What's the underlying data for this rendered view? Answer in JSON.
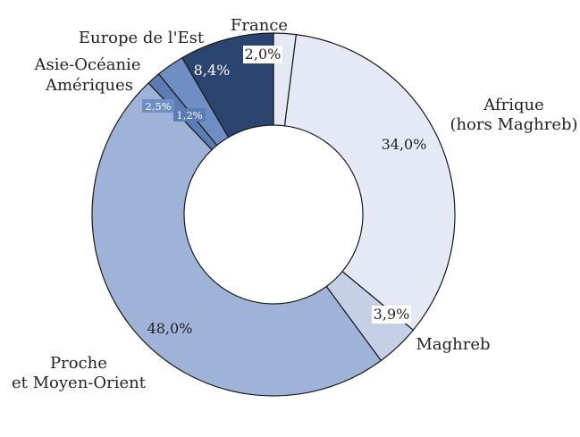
{
  "chart_data": {
    "type": "pie",
    "variant": "donut",
    "slices": [
      {
        "label": "France",
        "value": 2.0,
        "value_label": "2,0%",
        "color": "#e4e9f5"
      },
      {
        "label": "Afrique\n(hors Maghreb)",
        "value": 34.0,
        "value_label": "34,0%",
        "color": "#e4e9f5"
      },
      {
        "label": "Maghreb",
        "value": 3.9,
        "value_label": "3,9%",
        "color": "#c4d0e6"
      },
      {
        "label": "Proche\net Moyen-Orient",
        "value": 48.0,
        "value_label": "48,0%",
        "color": "#9fb3d8"
      },
      {
        "label": "Amériques",
        "value": 1.2,
        "value_label": "1,2%",
        "color": "#5b7cb4"
      },
      {
        "label": "Asie-Océanie",
        "value": 2.5,
        "value_label": "2,5%",
        "color": "#6f8fc4"
      },
      {
        "label": "Europe de l'Est",
        "value": 8.4,
        "value_label": "8,4%",
        "color": "#2c4470"
      }
    ],
    "direction": "clockwise",
    "start": "top",
    "outline_color": "#1a1a1a"
  }
}
